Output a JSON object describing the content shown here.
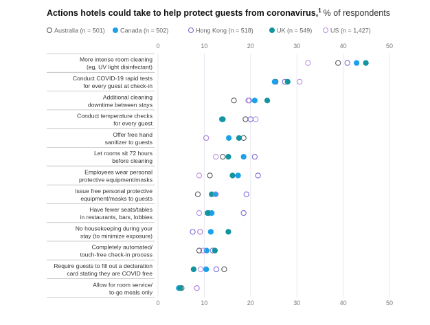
{
  "chart_data": {
    "type": "scatter",
    "title": "Actions hotels could take to help protect guests from coronavirus,",
    "title_footnote": "1",
    "subtitle": "% of respondents",
    "xlim": [
      0,
      50
    ],
    "xticks": [
      "0",
      "10",
      "20",
      "30",
      "40",
      "50"
    ],
    "grid": true,
    "legend_position": "top-left",
    "categories": [
      [
        "More intense room cleaning",
        "(eg, UV light disinfectant)"
      ],
      [
        "Conduct COVID-19 rapid tests",
        "for every guest at check-in"
      ],
      [
        "Additional cleaning",
        "downtime between stays"
      ],
      [
        "Conduct temperature checks",
        "for every guest"
      ],
      [
        "Offer free hand",
        "sanitizer to guests"
      ],
      [
        "Let rooms sit 72 hours",
        "before cleaning"
      ],
      [
        "Employees wear personal",
        "protective equipment/masks"
      ],
      [
        "Issue free personal protective",
        "equipment/masks to guests"
      ],
      [
        "Have fewer seats/tables",
        "in restaurants, bars, lobbies"
      ],
      [
        "No housekeeping during your",
        "stay (to minimize exposure)"
      ],
      [
        "Completely automated/",
        "touch-free check-in process"
      ],
      [
        "Require guests to fill out a declaration",
        "card stating they are COVID free"
      ],
      [
        "Allow for room service/",
        "to-go meals only"
      ]
    ],
    "series": [
      {
        "name": "Australia (n = 501)",
        "color": "#555a60",
        "marker": "hollow",
        "values": [
          38.9,
          25.4,
          16.4,
          18.9,
          18.5,
          14.0,
          11.2,
          8.6,
          10.9,
          9.1,
          8.9,
          14.3,
          5.1
        ]
      },
      {
        "name": "Canada (n = 502)",
        "color": "#1ba1e8",
        "marker": "filled",
        "values": [
          42.9,
          25.2,
          20.9,
          13.8,
          15.3,
          18.5,
          17.3,
          12.4,
          11.6,
          11.4,
          10.5,
          10.4,
          4.5
        ]
      },
      {
        "name": "Hong Kong (n = 518)",
        "color": "#7b6ad6",
        "marker": "hollow",
        "values": [
          40.9,
          27.4,
          19.7,
          20.0,
          10.4,
          20.9,
          21.6,
          19.1,
          18.5,
          7.5,
          11.8,
          12.6,
          8.4
        ]
      },
      {
        "name": "UK (n = 549)",
        "color": "#13949e",
        "marker": "filled",
        "values": [
          44.9,
          28.0,
          23.6,
          14.0,
          17.5,
          15.2,
          16.1,
          11.6,
          10.7,
          15.2,
          12.3,
          7.7,
          4.8
        ]
      },
      {
        "name": "US (n = 1,427)",
        "color": "#b98ee0",
        "marker": "hollow",
        "values": [
          32.4,
          30.6,
          19.5,
          21.1,
          10.4,
          12.5,
          8.9,
          12.5,
          8.9,
          9.1,
          9.7,
          9.2,
          8.4
        ]
      }
    ]
  }
}
